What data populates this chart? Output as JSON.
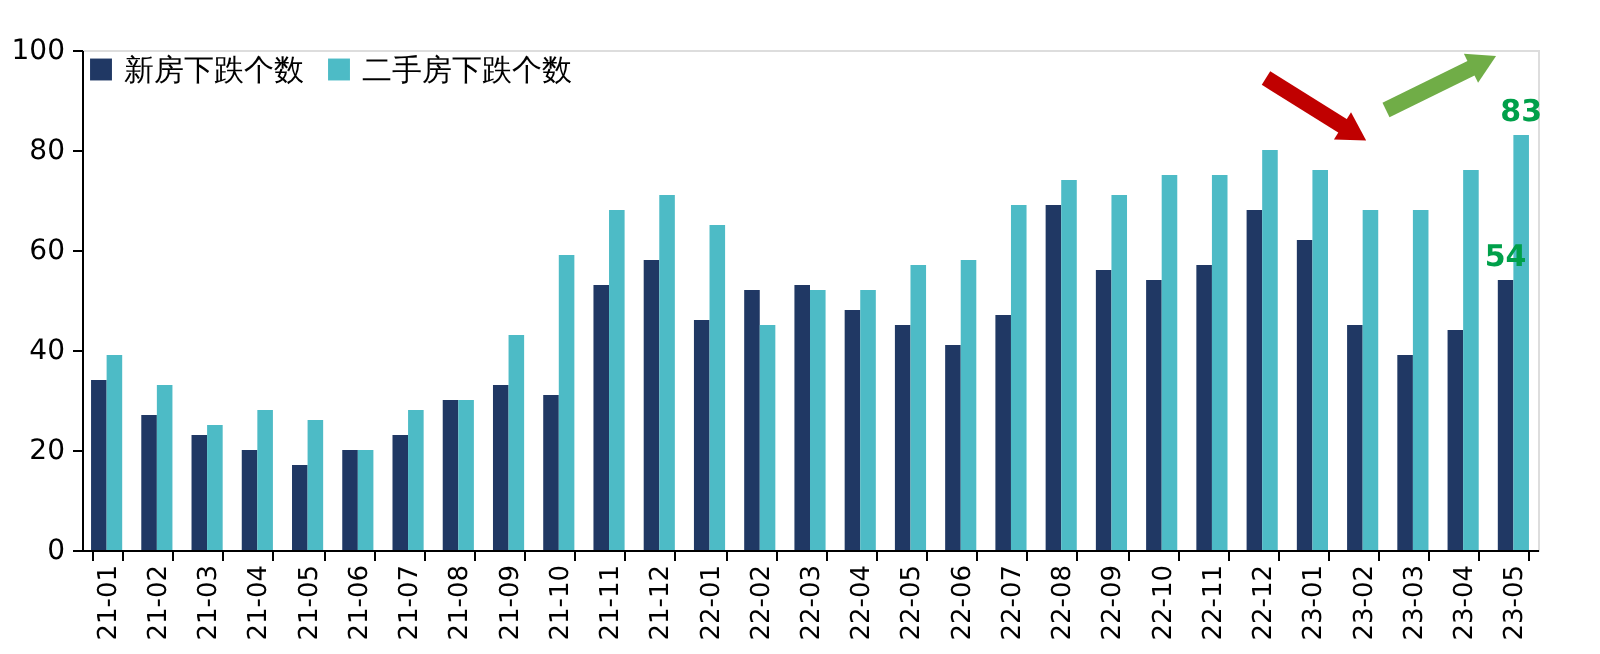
{
  "chart_data": {
    "type": "bar",
    "categories": [
      "21-01",
      "21-02",
      "21-03",
      "21-04",
      "21-05",
      "21-06",
      "21-07",
      "21-08",
      "21-09",
      "21-10",
      "21-11",
      "21-12",
      "22-01",
      "22-02",
      "22-03",
      "22-04",
      "22-05",
      "22-06",
      "22-07",
      "22-08",
      "22-09",
      "22-10",
      "22-11",
      "22-12",
      "23-01",
      "23-02",
      "23-03",
      "23-04",
      "23-05"
    ],
    "series": [
      {
        "name": "新房下跌个数",
        "color": "#203864",
        "values": [
          34,
          27,
          23,
          20,
          17,
          20,
          23,
          30,
          33,
          31,
          53,
          58,
          46,
          52,
          53,
          48,
          45,
          41,
          47,
          69,
          56,
          54,
          57,
          68,
          62,
          45,
          39,
          44,
          54
        ],
        "value_labels": [
          null,
          null,
          null,
          null,
          null,
          null,
          null,
          null,
          null,
          null,
          null,
          null,
          null,
          null,
          null,
          null,
          null,
          null,
          null,
          null,
          null,
          null,
          null,
          null,
          null,
          null,
          null,
          null,
          "54"
        ]
      },
      {
        "name": "二手房下跌个数",
        "color": "#4dbbc6",
        "values": [
          39,
          33,
          25,
          28,
          26,
          20,
          28,
          30,
          43,
          59,
          68,
          71,
          65,
          45,
          52,
          52,
          57,
          58,
          69,
          74,
          71,
          75,
          75,
          80,
          76,
          68,
          68,
          76,
          83
        ],
        "value_labels": [
          null,
          null,
          null,
          null,
          null,
          null,
          null,
          null,
          null,
          null,
          null,
          null,
          null,
          null,
          null,
          null,
          null,
          null,
          null,
          null,
          null,
          null,
          null,
          null,
          null,
          null,
          null,
          null,
          "83"
        ]
      }
    ],
    "ylim": [
      0,
      100
    ],
    "yticks": [
      0,
      20,
      40,
      60,
      80,
      100
    ],
    "grid": false,
    "legend": "top left"
  }
}
